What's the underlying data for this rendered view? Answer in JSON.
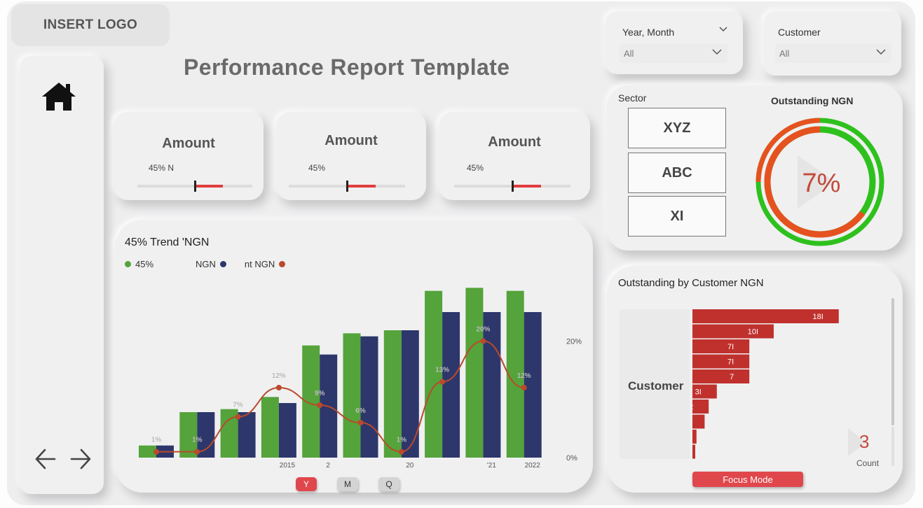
{
  "logo": {
    "text": "INSERT LOGO"
  },
  "title": "Performance Report Template",
  "filters": {
    "year_month": {
      "label": "Year, Month",
      "value": "All"
    },
    "customer": {
      "label": "Customer",
      "value": "All"
    }
  },
  "kpis": [
    {
      "title": "Amount",
      "subtitle": "45% N",
      "gauge_fill_fraction": 0.35,
      "gauge_marker_fraction": 0.5
    },
    {
      "title": "Amount",
      "subtitle": "45%",
      "gauge_fill_fraction": 0.35,
      "gauge_marker_fraction": 0.5
    },
    {
      "title": "Amount",
      "subtitle": "45%",
      "gauge_fill_fraction": 0.35,
      "gauge_marker_fraction": 0.5
    }
  ],
  "trend": {
    "title": "45%                     Trend 'NGN",
    "legend": [
      "45%",
      "NGN",
      "nt NGN"
    ],
    "x_labels": [
      "",
      "",
      "",
      "2015",
      "2",
      "",
      "20",
      "",
      "'21",
      "2022"
    ],
    "y2_ticks": [
      "20%",
      "0%"
    ]
  },
  "period_buttons": [
    "Y",
    "M",
    "Q"
  ],
  "sector": {
    "label": "Sector",
    "items": [
      "XYZ",
      "ABC",
      "XI"
    ]
  },
  "outstanding": {
    "title": "Outstanding NGN",
    "value": "7%",
    "outer_ring_orange_fraction": 0.25
  },
  "customer_chart": {
    "title": "Outstanding by Customer NGN",
    "axis_label": "Customer",
    "count_value": "3",
    "count_label": "Count",
    "focus_label": "Focus Mode"
  },
  "colors": {
    "green": "#55a33b",
    "navy": "#2d376b",
    "line": "#b94a2c",
    "red_bar": "#c0312d",
    "ring_green": "#2ec11d",
    "ring_orange": "#e6521f"
  },
  "chart_data": [
    {
      "type": "bar",
      "title": "45%                     Trend 'NGN",
      "categories": [
        "",
        "",
        "",
        "2015",
        "2",
        "",
        "20",
        "",
        "'21",
        "2022"
      ],
      "series": [
        {
          "name": "45%",
          "type": "bar",
          "values": [
            4,
            15,
            16,
            20,
            37,
            41,
            42,
            55,
            56,
            55
          ]
        },
        {
          "name": "NGN",
          "type": "bar",
          "values": [
            4,
            15,
            15,
            18,
            34,
            40,
            42,
            48,
            48,
            48
          ]
        },
        {
          "name": "nt NGN",
          "type": "line",
          "axis": "right",
          "values": [
            1,
            1,
            7,
            12,
            9,
            6,
            1,
            13,
            20,
            12
          ],
          "labels": [
            "1%",
            "1%",
            "7%",
            "12%",
            "9%",
            "6%",
            "1%",
            "13%",
            "20%",
            "12%"
          ]
        }
      ],
      "ylim": [
        0,
        60
      ],
      "y2lim": [
        0,
        30
      ],
      "y2_ticks": [
        "20%",
        "0%"
      ],
      "grid": false,
      "legend": "top-left"
    },
    {
      "type": "bar",
      "orientation": "horizontal",
      "title": "Outstanding by Customer NGN",
      "ylabel": "Customer",
      "values": [
        18,
        10,
        7,
        7,
        7,
        3,
        2,
        1.5,
        0.5,
        0.3
      ],
      "labels": [
        "18I",
        "10I",
        "7I",
        "7I",
        "7",
        "3I",
        "2",
        "",
        "",
        ""
      ],
      "xlim": [
        0,
        20
      ],
      "grid": false
    }
  ]
}
